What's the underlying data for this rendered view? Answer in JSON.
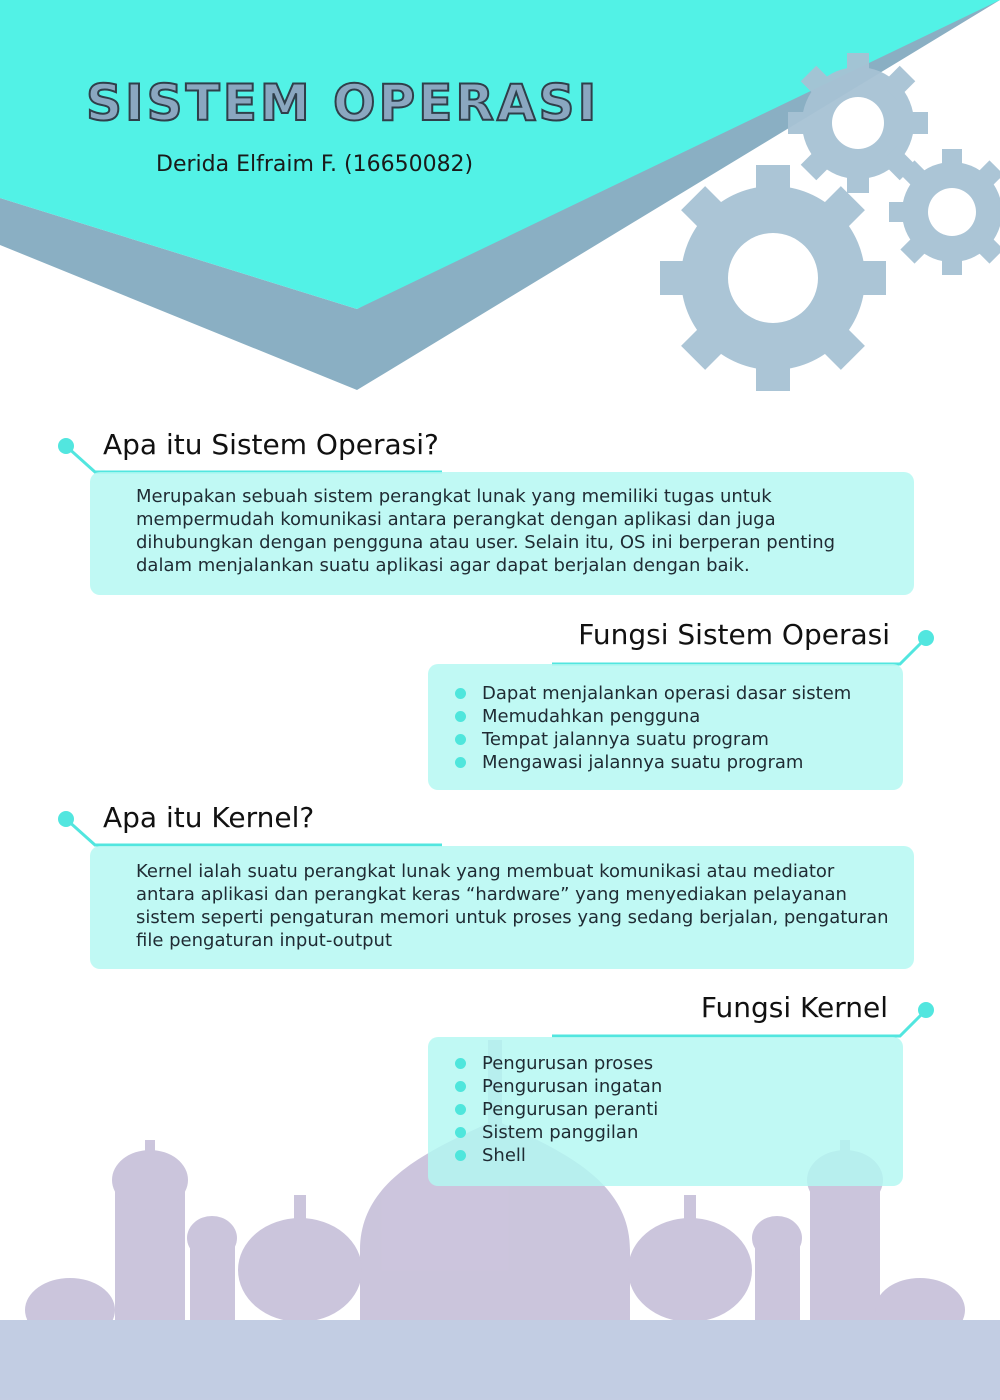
{
  "header": {
    "title": "SISTEM OPERASI",
    "author": "Derida Elfraim F. (16650082)"
  },
  "sections": [
    {
      "heading": "Apa itu Sistem Operasi?",
      "text": "Merupakan sebuah sistem perangkat lunak yang memiliki tugas untuk mempermudah komunikasi antara perangkat dengan aplikasi dan juga dihubungkan dengan pengguna atau user. Selain itu, OS ini berperan penting dalam menjalankan suatu aplikasi agar dapat berjalan dengan baik."
    },
    {
      "heading": "Fungsi Sistem Operasi",
      "items": [
        "Dapat menjalankan operasi dasar sistem",
        "Memudahkan pengguna",
        "Tempat jalannya suatu program",
        "Mengawasi jalannya suatu program"
      ]
    },
    {
      "heading": "Apa itu Kernel?",
      "text": "Kernel ialah suatu perangkat lunak yang membuat komunikasi atau mediator antara aplikasi dan perangkat keras “hardware” yang menyediakan pelayanan sistem seperti pengaturan memori untuk proses yang sedang berjalan, pengaturan file pengaturan input-output"
    },
    {
      "heading": "Fungsi Kernel",
      "items": [
        "Pengurusan proses",
        "Pengurusan ingatan",
        "Pengurusan peranti",
        "Sistem panggilan",
        "Shell"
      ]
    }
  ],
  "colors": {
    "accent_cyan": "#52f2e6",
    "shadow_blue": "#8aafc3",
    "gear": "#a7c2d4",
    "box_fill": "#b2f8f2",
    "mosque": "#c6bfd9"
  }
}
